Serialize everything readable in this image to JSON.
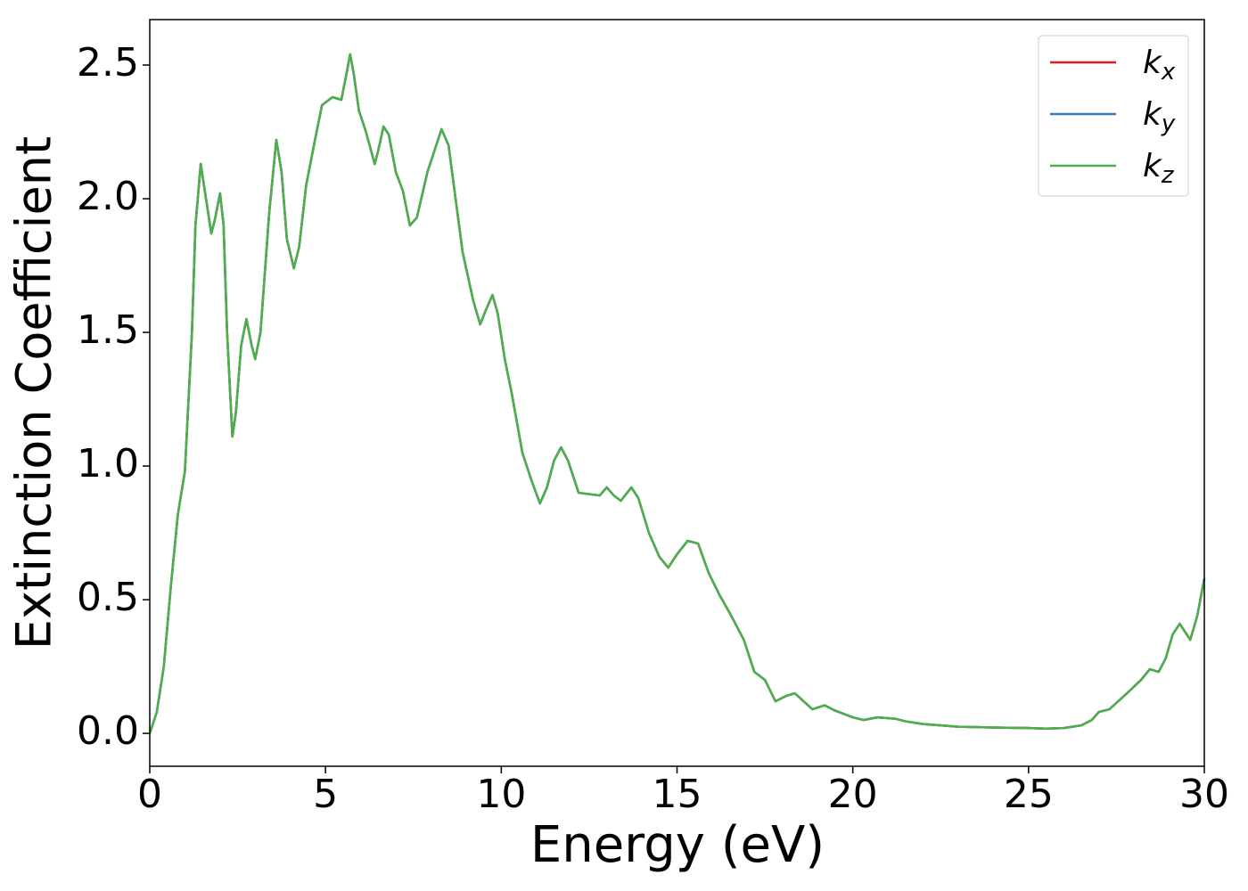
{
  "chart_data": {
    "type": "line",
    "xlabel": "Energy (eV)",
    "ylabel": "Extinction Coefficient",
    "x": [
      0,
      0.2,
      0.4,
      0.6,
      0.8,
      1.0,
      1.2,
      1.3,
      1.45,
      1.6,
      1.75,
      1.85,
      2.0,
      2.1,
      2.2,
      2.35,
      2.45,
      2.6,
      2.75,
      2.9,
      3.0,
      3.15,
      3.4,
      3.6,
      3.75,
      3.9,
      4.1,
      4.25,
      4.45,
      4.7,
      4.9,
      5.2,
      5.45,
      5.6,
      5.7,
      5.8,
      5.95,
      6.15,
      6.4,
      6.5,
      6.65,
      6.8,
      7.0,
      7.2,
      7.4,
      7.6,
      7.9,
      8.3,
      8.5,
      8.7,
      8.9,
      9.2,
      9.4,
      9.55,
      9.75,
      9.9,
      10.1,
      10.3,
      10.6,
      10.85,
      11.1,
      11.3,
      11.5,
      11.7,
      11.9,
      12.2,
      12.5,
      12.8,
      13.0,
      13.2,
      13.4,
      13.7,
      13.9,
      14.2,
      14.5,
      14.75,
      15.0,
      15.3,
      15.6,
      15.9,
      16.2,
      16.5,
      16.9,
      17.2,
      17.5,
      17.8,
      18.1,
      18.35,
      18.6,
      18.85,
      19.2,
      19.5,
      20.0,
      20.3,
      20.7,
      21.2,
      21.5,
      22.0,
      22.5,
      23.0,
      24.0,
      25.0,
      25.5,
      26.0,
      26.5,
      26.8,
      27.0,
      27.3,
      27.8,
      28.2,
      28.45,
      28.7,
      28.9,
      29.1,
      29.3,
      29.5,
      29.6,
      29.8,
      30.0
    ],
    "series": [
      {
        "name": "kx",
        "color": "#e41a1c",
        "values": [
          0,
          0.08,
          0.25,
          0.55,
          0.82,
          0.98,
          1.5,
          1.9,
          2.13,
          2.0,
          1.87,
          1.92,
          2.02,
          1.9,
          1.5,
          1.11,
          1.2,
          1.45,
          1.55,
          1.45,
          1.4,
          1.5,
          1.95,
          2.22,
          2.1,
          1.85,
          1.74,
          1.82,
          2.05,
          2.22,
          2.35,
          2.38,
          2.37,
          2.47,
          2.54,
          2.47,
          2.33,
          2.25,
          2.13,
          2.18,
          2.27,
          2.24,
          2.1,
          2.03,
          1.9,
          1.93,
          2.1,
          2.26,
          2.2,
          2.0,
          1.8,
          1.62,
          1.53,
          1.58,
          1.64,
          1.57,
          1.4,
          1.27,
          1.05,
          0.95,
          0.86,
          0.92,
          1.02,
          1.07,
          1.02,
          0.9,
          0.895,
          0.89,
          0.92,
          0.89,
          0.87,
          0.92,
          0.88,
          0.75,
          0.66,
          0.62,
          0.67,
          0.72,
          0.71,
          0.6,
          0.52,
          0.45,
          0.35,
          0.23,
          0.2,
          0.12,
          0.14,
          0.15,
          0.12,
          0.09,
          0.105,
          0.085,
          0.06,
          0.05,
          0.06,
          0.055,
          0.045,
          0.035,
          0.03,
          0.025,
          0.022,
          0.02,
          0.018,
          0.02,
          0.03,
          0.05,
          0.08,
          0.09,
          0.15,
          0.2,
          0.24,
          0.23,
          0.28,
          0.37,
          0.41,
          0.37,
          0.35,
          0.44,
          0.58
        ]
      },
      {
        "name": "ky",
        "color": "#377eb8",
        "values": [
          0,
          0.08,
          0.25,
          0.55,
          0.82,
          0.98,
          1.5,
          1.9,
          2.13,
          2.0,
          1.87,
          1.92,
          2.02,
          1.9,
          1.5,
          1.11,
          1.2,
          1.45,
          1.55,
          1.45,
          1.4,
          1.5,
          1.95,
          2.22,
          2.1,
          1.85,
          1.74,
          1.82,
          2.05,
          2.22,
          2.35,
          2.38,
          2.37,
          2.47,
          2.54,
          2.47,
          2.33,
          2.25,
          2.13,
          2.18,
          2.27,
          2.24,
          2.1,
          2.03,
          1.9,
          1.93,
          2.1,
          2.26,
          2.2,
          2.0,
          1.8,
          1.62,
          1.53,
          1.58,
          1.64,
          1.57,
          1.4,
          1.27,
          1.05,
          0.95,
          0.86,
          0.92,
          1.02,
          1.07,
          1.02,
          0.9,
          0.895,
          0.89,
          0.92,
          0.89,
          0.87,
          0.92,
          0.88,
          0.75,
          0.66,
          0.62,
          0.67,
          0.72,
          0.71,
          0.6,
          0.52,
          0.45,
          0.35,
          0.23,
          0.2,
          0.12,
          0.14,
          0.15,
          0.12,
          0.09,
          0.105,
          0.085,
          0.06,
          0.05,
          0.06,
          0.055,
          0.045,
          0.035,
          0.03,
          0.025,
          0.022,
          0.02,
          0.018,
          0.02,
          0.03,
          0.05,
          0.08,
          0.09,
          0.15,
          0.2,
          0.24,
          0.23,
          0.28,
          0.37,
          0.41,
          0.37,
          0.35,
          0.44,
          0.58
        ]
      },
      {
        "name": "kz",
        "color": "#4daf4a",
        "values": [
          0,
          0.08,
          0.25,
          0.55,
          0.82,
          0.98,
          1.5,
          1.9,
          2.13,
          2.0,
          1.87,
          1.92,
          2.02,
          1.9,
          1.5,
          1.11,
          1.2,
          1.45,
          1.55,
          1.45,
          1.4,
          1.5,
          1.95,
          2.22,
          2.1,
          1.85,
          1.74,
          1.82,
          2.05,
          2.22,
          2.35,
          2.38,
          2.37,
          2.47,
          2.54,
          2.47,
          2.33,
          2.25,
          2.13,
          2.18,
          2.27,
          2.24,
          2.1,
          2.03,
          1.9,
          1.93,
          2.1,
          2.26,
          2.2,
          2.0,
          1.8,
          1.62,
          1.53,
          1.58,
          1.64,
          1.57,
          1.4,
          1.27,
          1.05,
          0.95,
          0.86,
          0.92,
          1.02,
          1.07,
          1.02,
          0.9,
          0.895,
          0.89,
          0.92,
          0.89,
          0.87,
          0.92,
          0.88,
          0.75,
          0.66,
          0.62,
          0.67,
          0.72,
          0.71,
          0.6,
          0.52,
          0.45,
          0.35,
          0.23,
          0.2,
          0.12,
          0.14,
          0.15,
          0.12,
          0.09,
          0.105,
          0.085,
          0.06,
          0.05,
          0.06,
          0.055,
          0.045,
          0.035,
          0.03,
          0.025,
          0.022,
          0.02,
          0.018,
          0.02,
          0.03,
          0.05,
          0.08,
          0.09,
          0.15,
          0.2,
          0.24,
          0.23,
          0.28,
          0.37,
          0.41,
          0.37,
          0.35,
          0.44,
          0.58
        ]
      }
    ],
    "xlim": [
      0,
      30
    ],
    "xticks": [
      0,
      5,
      10,
      15,
      20,
      25,
      30
    ],
    "ylim": [
      -0.123,
      2.67
    ],
    "yticks": [
      {
        "value": 0,
        "label": "0.0"
      },
      {
        "value": 0.5,
        "label": "0.5"
      },
      {
        "value": 1,
        "label": "1.0"
      },
      {
        "value": 1.5,
        "label": "1.5"
      },
      {
        "value": 2,
        "label": "2.0"
      },
      {
        "value": 2.5,
        "label": "2.5"
      }
    ],
    "legend": "upper right",
    "grid": false
  }
}
